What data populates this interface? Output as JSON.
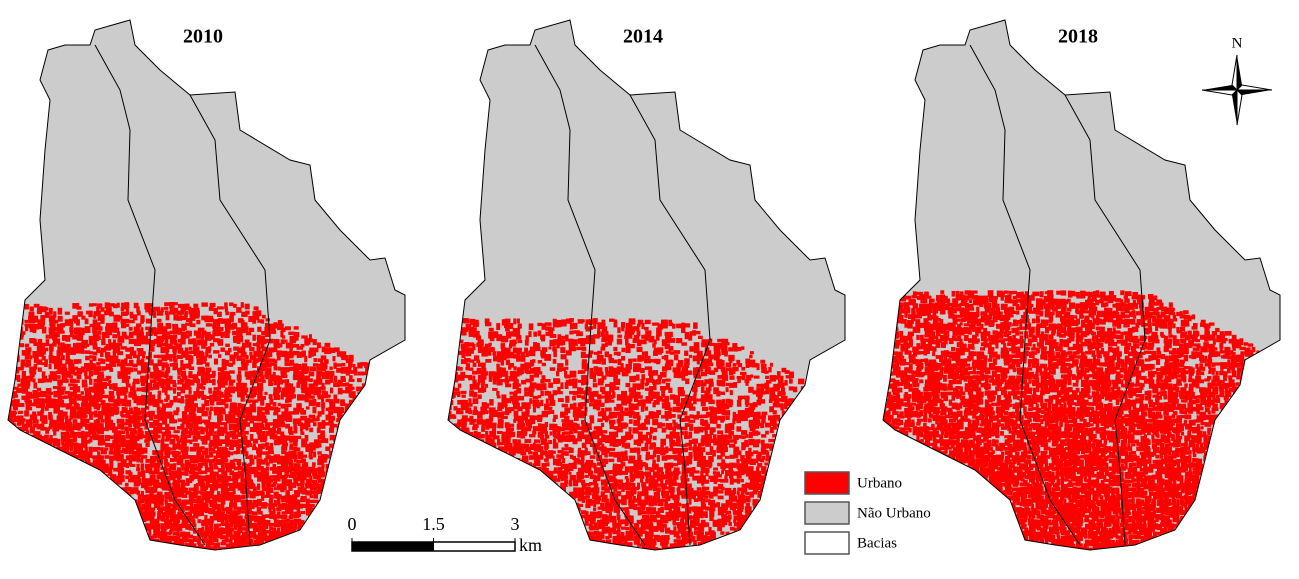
{
  "maps": [
    {
      "title": "2010"
    },
    {
      "title": "2014"
    },
    {
      "title": "2018"
    }
  ],
  "legend": [
    {
      "label": "Urbano",
      "color": "#ff0000"
    },
    {
      "label": "Não Urbano",
      "color": "#cccccc"
    },
    {
      "label": "Bacias",
      "color": "#ffffff"
    }
  ],
  "scale_bar": {
    "ticks": [
      0,
      1.5,
      3
    ],
    "unit": "km"
  },
  "north": "N"
}
